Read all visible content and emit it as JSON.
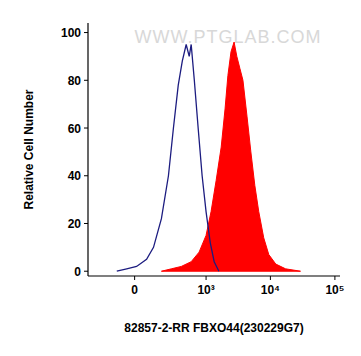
{
  "chart_data": {
    "type": "line",
    "xlabel": "82857-2-RR FBXO44(230229G7)",
    "ylabel": "Relative Cell Number",
    "annotations": [
      "WWW.PTGLAB.COM"
    ],
    "log": "x",
    "xlim": [
      -400,
      120000
    ],
    "xticks": [
      0,
      {
        "value": 1000,
        "label": "10³"
      },
      {
        "value": 10000,
        "label": "10⁴"
      },
      {
        "value": 100000,
        "label": "10⁵"
      }
    ],
    "ylim": [
      -2,
      104
    ],
    "yticks": [
      0,
      20,
      40,
      60,
      80,
      100
    ],
    "grid": false,
    "series": [
      {
        "type": "line",
        "color": "#1c1c80",
        "x": [
          -107,
          -45,
          11,
          69,
          114,
          174,
          239,
          294,
          356,
          416,
          482,
          540,
          581,
          652,
          750,
          867,
          999,
          1162,
          1339,
          1586
        ],
        "values": [
          0,
          1,
          2,
          5,
          10,
          22,
          40,
          60,
          78,
          88,
          95,
          90,
          95,
          80,
          60,
          40,
          25,
          12,
          4,
          0
        ]
      },
      {
        "type": "area",
        "color": "#ff0000",
        "x": [
          174,
          270,
          400,
          581,
          776,
          999,
          1198,
          1437,
          1722,
          1978,
          2190,
          2449,
          2732,
          3014,
          3360,
          3752,
          4333,
          4977,
          5731,
          6594,
          7881,
          9436,
          12120,
          17207,
          29296
        ],
        "values": [
          0,
          1,
          2,
          4,
          8,
          15,
          25,
          38,
          52,
          68,
          82,
          92,
          96,
          90,
          85,
          80,
          65,
          50,
          36,
          25,
          14,
          7,
          3,
          1,
          0
        ]
      }
    ]
  }
}
